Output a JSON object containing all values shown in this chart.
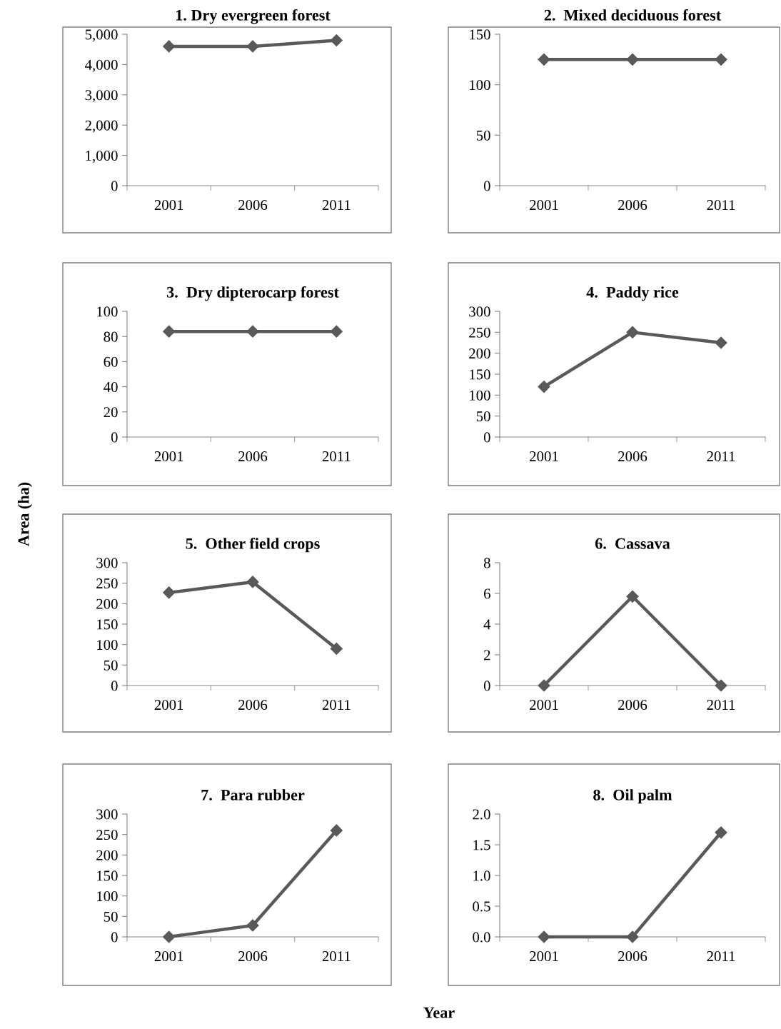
{
  "chart_data": [
    {
      "type": "line",
      "title": "1. Dry evergreen forest",
      "categories": [
        "2001",
        "2006",
        "2011"
      ],
      "series": [
        {
          "color": "#595959",
          "values": [
            4600,
            4600,
            4800
          ]
        }
      ],
      "ylim": [
        0,
        5000
      ],
      "yticks": [
        0,
        {
          "value": 1000,
          "label": "1,000"
        },
        {
          "value": 2000,
          "label": "2,000"
        },
        {
          "value": 3000,
          "label": "3,000"
        },
        {
          "value": 4000,
          "label": "4,000"
        },
        {
          "value": 5000,
          "label": "5,000"
        }
      ],
      "marker": "diamond",
      "grid": false
    },
    {
      "type": "line",
      "title": "2.  Mixed deciduous forest",
      "categories": [
        "2001",
        "2006",
        "2011"
      ],
      "series": [
        {
          "color": "#595959",
          "values": [
            125,
            125,
            125
          ]
        }
      ],
      "ylim": [
        0,
        150
      ],
      "yticks": [
        0,
        50,
        100,
        150
      ],
      "marker": "diamond",
      "grid": false
    },
    {
      "type": "line",
      "title": "3.  Dry dipterocarp forest",
      "categories": [
        "2001",
        "2006",
        "2011"
      ],
      "series": [
        {
          "color": "#595959",
          "values": [
            84,
            84,
            84
          ]
        }
      ],
      "ylim": [
        0,
        100
      ],
      "yticks": [
        0,
        20,
        40,
        60,
        80,
        100
      ],
      "marker": "diamond",
      "grid": false
    },
    {
      "type": "line",
      "title": "4.  Paddy rice",
      "categories": [
        "2001",
        "2006",
        "2011"
      ],
      "series": [
        {
          "color": "#595959",
          "values": [
            120,
            250,
            225
          ]
        }
      ],
      "ylim": [
        0,
        300
      ],
      "yticks": [
        0,
        50,
        100,
        150,
        200,
        250,
        300
      ],
      "marker": "diamond",
      "grid": false
    },
    {
      "type": "line",
      "title": "5.  Other field crops",
      "ylabel": "Area (ha)",
      "categories": [
        "2001",
        "2006",
        "2011"
      ],
      "series": [
        {
          "color": "#595959",
          "values": [
            227,
            253,
            90
          ]
        }
      ],
      "ylim": [
        0,
        300
      ],
      "yticks": [
        0,
        50,
        100,
        150,
        200,
        250,
        300
      ],
      "marker": "diamond",
      "grid": false
    },
    {
      "type": "line",
      "title": "6.  Cassava",
      "categories": [
        "2001",
        "2006",
        "2011"
      ],
      "series": [
        {
          "color": "#595959",
          "values": [
            0,
            5.8,
            0
          ]
        }
      ],
      "ylim": [
        0,
        8
      ],
      "yticks": [
        0,
        2,
        4,
        6,
        8
      ],
      "marker": "diamond",
      "grid": false
    },
    {
      "type": "line",
      "title": "7.  Para rubber",
      "xlabel": "Year",
      "categories": [
        "2001",
        "2006",
        "2011"
      ],
      "series": [
        {
          "color": "#595959",
          "values": [
            0,
            28,
            260
          ]
        }
      ],
      "ylim": [
        0,
        300
      ],
      "yticks": [
        0,
        50,
        100,
        150,
        200,
        250,
        300
      ],
      "marker": "diamond",
      "grid": false
    },
    {
      "type": "line",
      "title": "8.  Oil palm",
      "categories": [
        "2001",
        "2006",
        "2011"
      ],
      "series": [
        {
          "color": "#595959",
          "values": [
            0,
            0,
            1.7
          ]
        }
      ],
      "ylim": [
        0,
        2.0
      ],
      "yticks": [
        {
          "value": 0,
          "label": "0.0"
        },
        {
          "value": 0.5,
          "label": "0.5"
        },
        {
          "value": 1.0,
          "label": "1.0"
        },
        {
          "value": 1.5,
          "label": "1.5"
        },
        {
          "value": 2.0,
          "label": "2.0"
        }
      ],
      "marker": "diamond",
      "grid": false
    }
  ]
}
